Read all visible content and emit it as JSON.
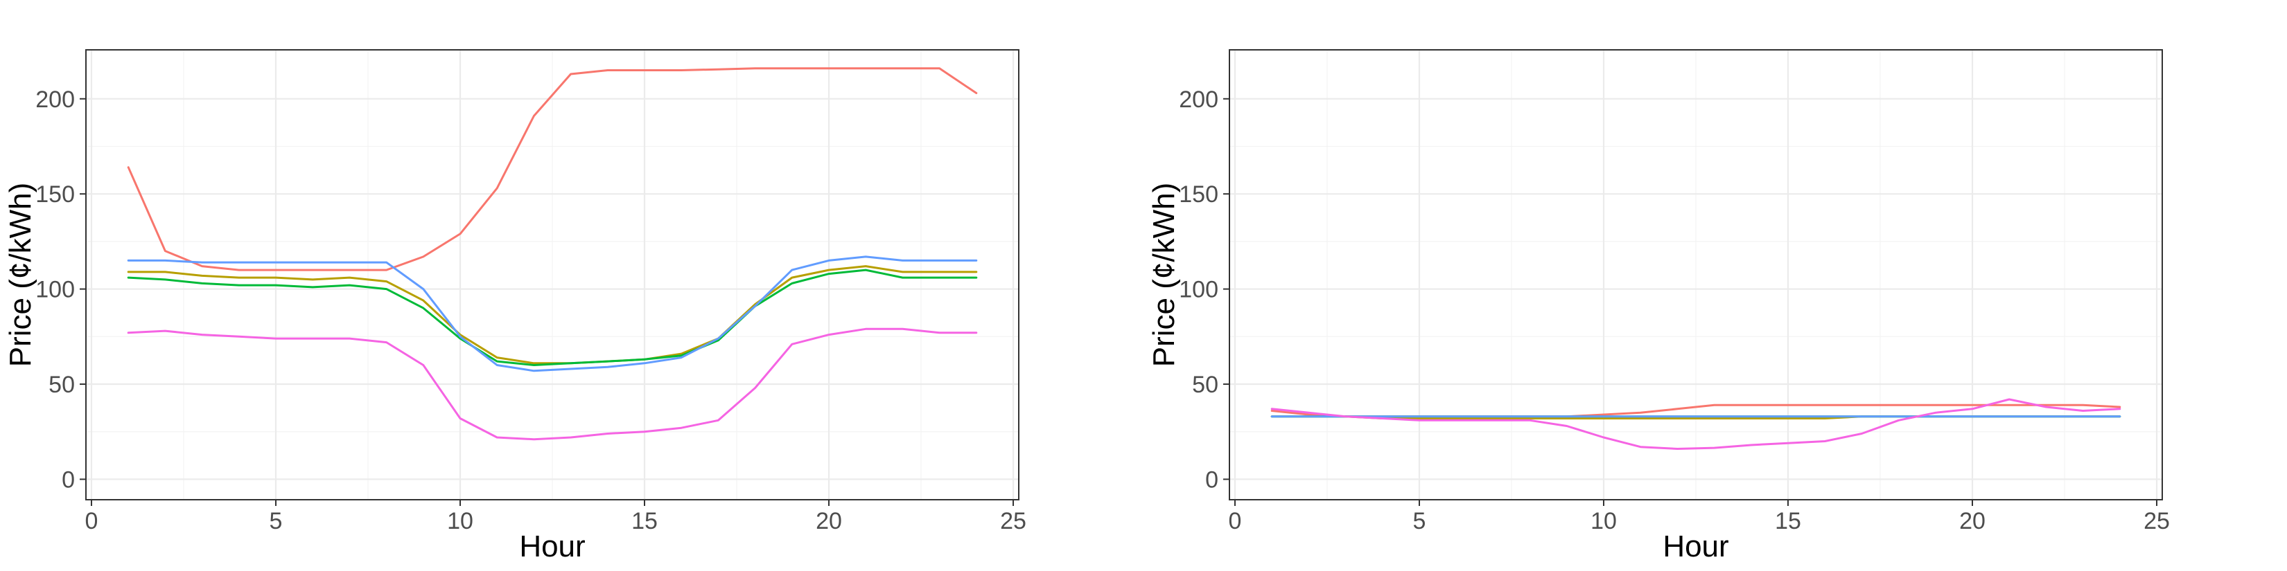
{
  "chart_data": [
    {
      "type": "line",
      "title": "",
      "xlabel": "Hour",
      "ylabel": "Price (¢/kWh)",
      "xlim": [
        -0.15,
        25.15
      ],
      "ylim": [
        -10.75,
        225.75
      ],
      "x_ticks": [
        0,
        5,
        10,
        15,
        20,
        25
      ],
      "y_ticks": [
        0,
        50,
        100,
        150,
        200
      ],
      "grid": true,
      "legend": "none",
      "x": [
        1,
        2,
        3,
        4,
        5,
        6,
        7,
        8,
        9,
        10,
        11,
        12,
        13,
        14,
        15,
        16,
        17,
        18,
        19,
        20,
        21,
        22,
        23,
        24
      ],
      "series": [
        {
          "color": "#F8766D",
          "values": [
            164,
            120,
            112,
            110,
            110,
            110,
            110,
            110,
            117,
            129,
            153,
            191,
            213,
            215,
            215,
            215,
            215.5,
            216,
            216,
            216,
            216,
            216,
            216,
            203
          ]
        },
        {
          "color": "#B79F00",
          "values": [
            109,
            109,
            107,
            106,
            106,
            105,
            106,
            104,
            94,
            76,
            64,
            61,
            61,
            62,
            63,
            66,
            74,
            92,
            106,
            110,
            112,
            109,
            109,
            109
          ]
        },
        {
          "color": "#00BA38",
          "values": [
            106,
            105,
            103,
            102,
            102,
            101,
            102,
            100,
            90,
            74,
            62,
            60,
            61,
            62,
            63,
            65,
            73,
            91,
            103,
            108,
            110,
            106,
            106,
            106
          ]
        },
        {
          "color": "#619CFF",
          "values": [
            115,
            115,
            114,
            114,
            114,
            114,
            114,
            114,
            100,
            75,
            60,
            57,
            58,
            59,
            61,
            64,
            74,
            91,
            110,
            115,
            117,
            115,
            115,
            115
          ]
        },
        {
          "color": "#F564E3",
          "values": [
            77,
            78,
            76,
            75,
            74,
            74,
            74,
            72,
            60,
            32,
            22,
            21,
            22,
            24,
            25,
            27,
            31,
            48,
            71,
            76,
            79,
            79,
            77,
            77
          ]
        }
      ]
    },
    {
      "type": "line",
      "title": "",
      "xlabel": "Hour",
      "ylabel": "Price (¢/kWh)",
      "xlim": [
        -0.15,
        25.15
      ],
      "ylim": [
        -10.75,
        225.75
      ],
      "x_ticks": [
        0,
        5,
        10,
        15,
        20,
        25
      ],
      "y_ticks": [
        0,
        50,
        100,
        150,
        200
      ],
      "grid": true,
      "legend": "none",
      "x": [
        1,
        2,
        3,
        4,
        5,
        6,
        7,
        8,
        9,
        10,
        11,
        12,
        13,
        14,
        15,
        16,
        17,
        18,
        19,
        20,
        21,
        22,
        23,
        24
      ],
      "series": [
        {
          "color": "#F8766D",
          "values": [
            36,
            34,
            33,
            33,
            33,
            33,
            33,
            33,
            33,
            34,
            35,
            37,
            39,
            39,
            39,
            39,
            39,
            39,
            39,
            39,
            39,
            39,
            39,
            38
          ]
        },
        {
          "color": "#B79F00",
          "values": [
            33,
            33,
            33,
            32,
            32,
            32,
            32,
            32,
            32,
            32,
            32,
            32,
            32,
            32,
            32,
            32,
            33,
            33,
            33,
            33,
            33,
            33,
            33,
            33
          ]
        },
        {
          "color": "#00BA38",
          "values": [
            33,
            33,
            33,
            33,
            33,
            33,
            33,
            33,
            33,
            33,
            33,
            33,
            33,
            33,
            33,
            33,
            33,
            33,
            33,
            33,
            33,
            33,
            33,
            33
          ]
        },
        {
          "color": "#619CFF",
          "values": [
            33,
            33,
            33,
            33,
            33,
            33,
            33,
            33,
            33,
            33,
            33,
            33,
            33,
            33,
            33,
            33,
            33,
            33,
            33,
            33,
            33,
            33,
            33,
            33
          ]
        },
        {
          "color": "#F564E3",
          "values": [
            37,
            35,
            33,
            32,
            31,
            31,
            31,
            31,
            28,
            22,
            17,
            16,
            16.5,
            18,
            19,
            20,
            24,
            31,
            35,
            37,
            42,
            38,
            36,
            37
          ]
        }
      ]
    }
  ]
}
